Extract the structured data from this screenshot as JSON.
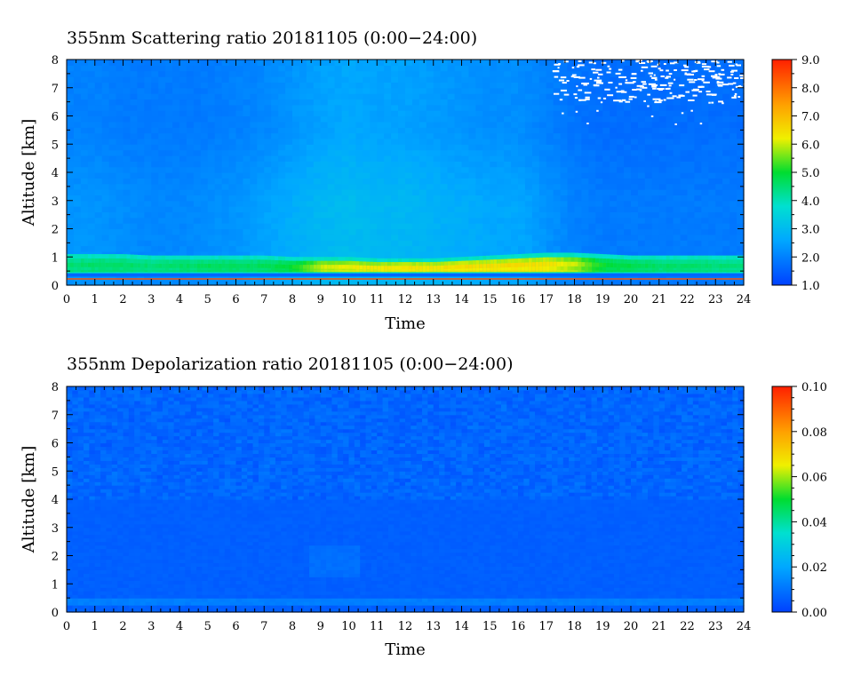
{
  "chart_data": [
    {
      "type": "heatmap",
      "title": "355nm Scattering ratio  20181105 (0:00−24:00)",
      "xlabel": "Time",
      "ylabel": "Altitude [km]",
      "xlim": [
        0,
        24
      ],
      "ylim": [
        0,
        8
      ],
      "x_ticks": [
        "0",
        "1",
        "2",
        "3",
        "4",
        "5",
        "6",
        "7",
        "8",
        "9",
        "10",
        "11",
        "12",
        "13",
        "14",
        "15",
        "16",
        "17",
        "18",
        "19",
        "20",
        "21",
        "22",
        "23",
        "24"
      ],
      "y_ticks": [
        "0",
        "1",
        "2",
        "3",
        "4",
        "5",
        "6",
        "7",
        "8"
      ],
      "colorbar": {
        "min": 1.0,
        "max": 9.0,
        "ticks": [
          "1.0",
          "2.0",
          "3.0",
          "4.0",
          "5.0",
          "6.0",
          "7.0",
          "8.0",
          "9.0"
        ]
      },
      "profile_hours": [
        0,
        1,
        2,
        3,
        4,
        5,
        6,
        7,
        8,
        9,
        10,
        11,
        12,
        13,
        14,
        15,
        16,
        17,
        18,
        19,
        20,
        21,
        22,
        23,
        24
      ],
      "boundary_layer_peak": [
        4.5,
        4.6,
        4.6,
        4.5,
        4.6,
        4.7,
        4.7,
        4.7,
        5.0,
        6.0,
        6.2,
        6.3,
        6.4,
        6.4,
        6.5,
        6.5,
        6.5,
        6.5,
        6.0,
        5.0,
        4.8,
        4.6,
        4.6,
        4.5,
        4.5
      ],
      "boundary_layer_top_km": [
        1.1,
        1.1,
        1.1,
        1.05,
        1.05,
        1.05,
        1.05,
        1.05,
        1.0,
        1.0,
        1.0,
        0.95,
        0.95,
        0.95,
        1.0,
        1.05,
        1.1,
        1.15,
        1.15,
        1.1,
        1.05,
        1.05,
        1.05,
        1.05,
        1.05
      ],
      "free_troposphere_value": [
        2.3,
        2.3,
        2.2,
        2.1,
        2.1,
        2.2,
        2.3,
        2.5,
        2.7,
        2.9,
        3.0,
        2.9,
        2.9,
        2.8,
        2.7,
        2.6,
        2.6,
        2.3,
        2.0,
        1.9,
        1.9,
        1.9,
        1.9,
        1.9,
        1.9
      ],
      "upper_troposphere_value": [
        2.0,
        2.0,
        1.9,
        1.9,
        1.9,
        1.9,
        2.0,
        2.1,
        2.3,
        2.5,
        2.6,
        2.5,
        2.5,
        2.4,
        2.3,
        2.2,
        2.2,
        2.0,
        1.8,
        1.7,
        1.7,
        1.7,
        1.7,
        1.7,
        1.7
      ]
    },
    {
      "type": "heatmap",
      "title": "355nm Depolarization ratio  20181105 (0:00−24:00)",
      "xlabel": "Time",
      "ylabel": "Altitude [km]",
      "xlim": [
        0,
        24
      ],
      "ylim": [
        0,
        8
      ],
      "x_ticks": [
        "0",
        "1",
        "2",
        "3",
        "4",
        "5",
        "6",
        "7",
        "8",
        "9",
        "10",
        "11",
        "12",
        "13",
        "14",
        "15",
        "16",
        "17",
        "18",
        "19",
        "20",
        "21",
        "22",
        "23",
        "24"
      ],
      "y_ticks": [
        "0",
        "1",
        "2",
        "3",
        "4",
        "5",
        "6",
        "7",
        "8"
      ],
      "colorbar": {
        "min": 0.0,
        "max": 0.1,
        "ticks": [
          "0.00",
          "0.02",
          "0.04",
          "0.06",
          "0.08",
          "0.10"
        ]
      },
      "background_value": 0.006,
      "near_surface_value": 0.012,
      "noisy_upper_value": 0.011
    }
  ]
}
